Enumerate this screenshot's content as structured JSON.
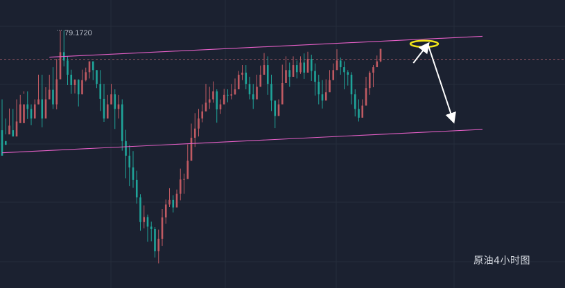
{
  "chart_data": {
    "type": "candlestick",
    "caption": "原油4小时图",
    "high_marker": {
      "label": "79.1720",
      "value": 79.172
    },
    "price_min": 73.0,
    "price_max": 79.9,
    "grid": true,
    "reference_line": {
      "value": 78.48,
      "style": "dashed"
    },
    "candles": [
      [
        76.78,
        76.17,
        77.52,
        76.52
      ],
      [
        76.52,
        76.43,
        77.06,
        76.68
      ],
      [
        76.68,
        76.89,
        77.3,
        76.78
      ],
      [
        76.78,
        76.63,
        77.29,
        76.63
      ],
      [
        76.63,
        76.99,
        77.52,
        76.95
      ],
      [
        76.95,
        77.4,
        77.63,
        77.29
      ],
      [
        76.95,
        77.4,
        77.71,
        77.65
      ],
      [
        77.4,
        77.29,
        77.71,
        77.05
      ],
      [
        77.29,
        77.06,
        77.4,
        76.9
      ],
      [
        77.06,
        77.4,
        77.52,
        77.33
      ],
      [
        77.4,
        77.52,
        78.11,
        77.4
      ],
      [
        77.52,
        77.06,
        78.11,
        76.85
      ],
      [
        77.06,
        77.52,
        77.81,
        77.52
      ],
      [
        77.52,
        77.75,
        78.11,
        77.61
      ],
      [
        77.75,
        77.4,
        78.29,
        77.29
      ],
      [
        77.4,
        78.0,
        78.49,
        77.28
      ],
      [
        78.0,
        78.65,
        79.17,
        78.0
      ],
      [
        78.65,
        78.45,
        79.17,
        78.31
      ],
      [
        78.45,
        78.11,
        78.55,
        77.86
      ],
      [
        78.11,
        77.86,
        78.23,
        77.65
      ],
      [
        77.86,
        77.99,
        78.0,
        77.66
      ],
      [
        77.99,
        77.64,
        78.0,
        77.35
      ],
      [
        77.64,
        77.98,
        78.23,
        77.64
      ],
      [
        77.98,
        78.17,
        78.28,
        77.95
      ],
      [
        78.17,
        78.43,
        78.43,
        78.02
      ],
      [
        78.43,
        78.22,
        78.43,
        77.98
      ],
      [
        78.22,
        77.89,
        78.22,
        77.79
      ],
      [
        77.89,
        77.53,
        78.22,
        77.24
      ],
      [
        77.53,
        77.06,
        77.89,
        76.98
      ],
      [
        77.06,
        77.4,
        77.63,
        77.06
      ],
      [
        77.4,
        77.64,
        77.89,
        77.4
      ],
      [
        77.64,
        77.29,
        77.76,
        76.81
      ],
      [
        77.29,
        77.4,
        77.63,
        77.06
      ],
      [
        77.4,
        76.52,
        77.52,
        76.29
      ],
      [
        76.52,
        76.17,
        76.79,
        75.63
      ],
      [
        76.17,
        75.89,
        76.42,
        75.44
      ],
      [
        75.89,
        75.59,
        76.28,
        75.4
      ],
      [
        75.59,
        75.17,
        75.81,
        75.02
      ],
      [
        75.17,
        74.58,
        75.25,
        74.37
      ],
      [
        74.58,
        74.7,
        74.98,
        74.43
      ],
      [
        74.7,
        74.47,
        74.76,
        74.11
      ],
      [
        74.47,
        74.41,
        74.59,
        74.12
      ],
      [
        74.41,
        73.88,
        74.46,
        73.73
      ],
      [
        73.88,
        74.18,
        74.4,
        73.59
      ],
      [
        74.18,
        74.69,
        74.89,
        74.01
      ],
      [
        74.69,
        75.0,
        75.12,
        74.54
      ],
      [
        75.0,
        75.11,
        75.39,
        74.94
      ],
      [
        75.11,
        74.93,
        75.22,
        74.81
      ],
      [
        74.93,
        75.26,
        75.36,
        74.96
      ],
      [
        75.26,
        75.6,
        75.86,
        75.1
      ],
      [
        75.6,
        75.61,
        75.74,
        75.26
      ],
      [
        75.61,
        76.05,
        76.44,
        75.86
      ],
      [
        76.05,
        76.6,
        76.94,
        76.08
      ],
      [
        76.6,
        76.82,
        77.19,
        76.38
      ],
      [
        76.82,
        77.06,
        77.29,
        76.63
      ],
      [
        77.06,
        77.23,
        77.4,
        76.97
      ],
      [
        77.23,
        77.44,
        77.89,
        77.29
      ],
      [
        77.44,
        77.52,
        77.82,
        77.29
      ],
      [
        77.52,
        77.71,
        77.95,
        77.44
      ],
      [
        77.71,
        77.28,
        77.76,
        76.96
      ],
      [
        77.28,
        77.4,
        77.52,
        77.17
      ],
      [
        77.4,
        77.63,
        77.77,
        77.4
      ],
      [
        77.63,
        77.61,
        77.76,
        77.45
      ],
      [
        77.61,
        77.64,
        77.89,
        77.52
      ],
      [
        77.64,
        77.76,
        78.02,
        77.63
      ],
      [
        77.76,
        78.11,
        78.2,
        77.89
      ],
      [
        78.11,
        78.16,
        78.34,
        77.98
      ],
      [
        78.16,
        77.89,
        78.34,
        77.76
      ],
      [
        77.89,
        77.64,
        78.06,
        77.52
      ],
      [
        77.64,
        77.52,
        77.89,
        77.29
      ],
      [
        77.52,
        77.82,
        78.11,
        77.53
      ],
      [
        77.82,
        78.11,
        78.33,
        77.99
      ],
      [
        78.11,
        78.34,
        78.63,
        78.11
      ],
      [
        78.34,
        77.89,
        78.55,
        77.63
      ],
      [
        77.89,
        77.49,
        78.11,
        77.24
      ],
      [
        77.49,
        77.12,
        77.4,
        76.83
      ],
      [
        77.12,
        77.4,
        77.52,
        77.12
      ],
      [
        77.4,
        77.91,
        78.35,
        77.88
      ],
      [
        77.91,
        78.22,
        78.55,
        78.17
      ],
      [
        78.22,
        78.06,
        78.4,
        77.82
      ],
      [
        78.06,
        78.34,
        78.55,
        78.17
      ],
      [
        78.34,
        78.17,
        78.45,
        78.02
      ],
      [
        78.17,
        78.4,
        78.55,
        78.13
      ],
      [
        78.4,
        78.16,
        78.62,
        78.01
      ],
      [
        78.16,
        78.49,
        78.66,
        78.22
      ],
      [
        78.49,
        78.2,
        78.59,
        77.96
      ],
      [
        78.2,
        77.94,
        78.38,
        77.61
      ],
      [
        77.94,
        77.64,
        78.11,
        77.4
      ],
      [
        77.64,
        77.49,
        77.98,
        77.3
      ],
      [
        77.49,
        77.69,
        78.0,
        77.52
      ],
      [
        77.69,
        77.98,
        78.22,
        77.82
      ],
      [
        77.98,
        78.22,
        78.38,
        78.11
      ],
      [
        78.22,
        78.45,
        78.72,
        78.31
      ],
      [
        78.45,
        78.29,
        78.52,
        78.11
      ],
      [
        78.29,
        78.17,
        78.43,
        77.76
      ],
      [
        78.17,
        78.11,
        78.22,
        77.85
      ],
      [
        78.11,
        77.64,
        78.17,
        77.4
      ],
      [
        77.64,
        77.29,
        77.76,
        77.11
      ],
      [
        77.29,
        77.08,
        77.52,
        76.99
      ],
      [
        77.08,
        77.37,
        77.52,
        77.15
      ],
      [
        77.37,
        77.79,
        78.06,
        77.46
      ],
      [
        77.79,
        78.16,
        78.2,
        77.63
      ],
      [
        78.16,
        78.29,
        78.34,
        77.81
      ],
      [
        78.29,
        78.43,
        78.57,
        78.34
      ],
      [
        78.43,
        78.73,
        78.73,
        78.41
      ]
    ],
    "channel": {
      "upper": {
        "from": {
          "x": 13,
          "y": 78.53
        },
        "to": {
          "x": 132,
          "y": 79.03
        }
      },
      "lower": {
        "from": {
          "x": 0,
          "y": 76.24
        },
        "to": {
          "x": 132,
          "y": 76.8
        }
      }
    },
    "annotations": [
      {
        "type": "ellipse",
        "x": 116,
        "y": 78.85,
        "color": "#f2e51a"
      },
      {
        "type": "arrow",
        "from": {
          "x": 113,
          "y": 78.39
        },
        "to": {
          "x": 117,
          "y": 78.84
        },
        "color": "#ffffff"
      },
      {
        "type": "arrow",
        "from": {
          "x": 117,
          "y": 78.84
        },
        "to": {
          "x": 124,
          "y": 77.0
        },
        "color": "#ffffff"
      }
    ],
    "colors": {
      "background": "#1b2130",
      "grid": "#262d3b",
      "up": "#c05a62",
      "down": "#1fa59a",
      "channel": "#e45fc6",
      "reference": "#9a5a66"
    }
  }
}
